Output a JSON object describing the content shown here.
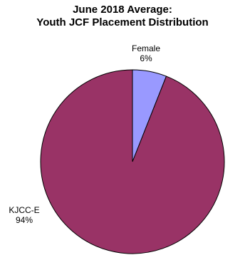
{
  "chart_data": {
    "type": "pie",
    "title": [
      "June 2018 Average:",
      "Youth JCF Placement Distribution"
    ],
    "slices": [
      {
        "name": "Female",
        "value": 6,
        "label": "6%",
        "color": "#9999ff"
      },
      {
        "name": "KJCC-E",
        "value": 94,
        "label": "94%",
        "color": "#993366"
      }
    ],
    "start_angle_deg": 0,
    "direction": "clockwise",
    "legend": "none"
  }
}
